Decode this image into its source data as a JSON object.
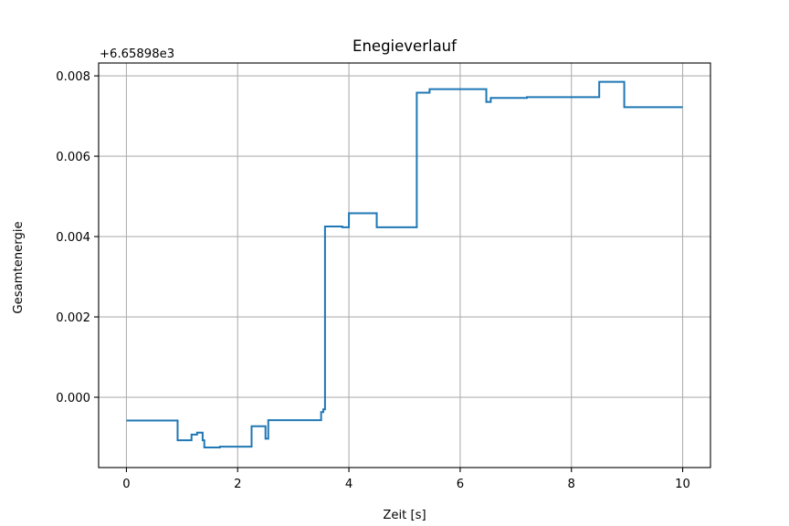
{
  "chart_data": {
    "type": "line",
    "title": "Enegieverlauf",
    "xlabel": "Zeit [s]",
    "ylabel": "Gesamtenergie",
    "offset_text": "+6.65898e3",
    "xlim": [
      -0.5,
      10.5
    ],
    "ylim": [
      -0.00175,
      0.00832
    ],
    "x_ticks": [
      0,
      2,
      4,
      6,
      8,
      10
    ],
    "x_tick_labels": [
      "0",
      "2",
      "4",
      "6",
      "8",
      "10"
    ],
    "y_ticks": [
      0.0,
      0.002,
      0.004,
      0.006,
      0.008
    ],
    "y_tick_labels": [
      "0.000",
      "0.002",
      "0.004",
      "0.006",
      "0.008"
    ],
    "grid": true,
    "line_color": "#1f77b4",
    "series": [
      {
        "x": [
          0.0,
          0.92,
          0.92,
          1.17,
          1.17,
          1.27,
          1.27,
          1.37,
          1.37,
          1.4,
          1.4,
          1.68,
          1.68,
          2.25,
          2.25,
          2.5,
          2.5,
          2.55,
          2.55,
          3.5,
          3.5,
          3.54,
          3.54,
          3.57,
          3.57,
          3.88,
          3.88,
          4.0,
          4.0,
          4.5,
          4.5,
          5.22,
          5.22,
          5.45,
          5.45,
          6.47,
          6.47,
          6.55,
          6.55,
          7.2,
          7.2,
          8.5,
          8.5,
          8.95,
          8.95,
          10.0
        ],
        "y": [
          -0.00058,
          -0.00058,
          -0.00107,
          -0.00107,
          -0.00093,
          -0.00093,
          -0.00088,
          -0.00088,
          -0.00107,
          -0.00107,
          -0.00125,
          -0.00125,
          -0.00123,
          -0.00123,
          -0.00072,
          -0.00072,
          -0.00103,
          -0.00103,
          -0.00057,
          -0.00057,
          -0.00037,
          -0.00037,
          -0.0003,
          -0.0003,
          0.00425,
          0.00425,
          0.00423,
          0.00423,
          0.00458,
          0.00458,
          0.00423,
          0.00423,
          0.00758,
          0.00758,
          0.00767,
          0.00767,
          0.00735,
          0.00735,
          0.00745,
          0.00745,
          0.00747,
          0.00747,
          0.00785,
          0.00785,
          0.00722,
          0.00722
        ]
      }
    ]
  }
}
